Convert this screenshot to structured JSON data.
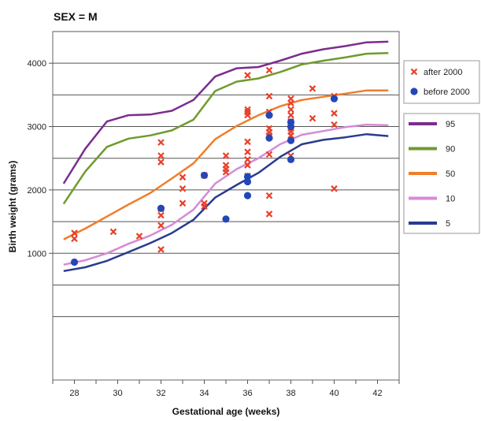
{
  "chart_data": {
    "type": "line",
    "title": "SEX = M",
    "xlabel": "Gestational age (weeks)",
    "ylabel": "Birth weight (grams)",
    "xlim": [
      27,
      43
    ],
    "ylim": [
      -1000,
      4500
    ],
    "x_ticks": [
      28,
      30,
      32,
      34,
      36,
      38,
      40,
      42
    ],
    "y_ticks": [
      1000,
      2000,
      3000,
      4000
    ],
    "y_gridlines": [
      0,
      500,
      1000,
      1500,
      2000,
      2500,
      3000,
      3500,
      4000,
      4500
    ],
    "grid": "horizontal",
    "legend_position": "right",
    "series": [
      {
        "name": "95",
        "color": "#7b2d8e",
        "x": [
          27.5,
          28.5,
          29.5,
          30.5,
          31.5,
          32.5,
          33.5,
          34.5,
          35.5,
          36.5,
          37.5,
          38.5,
          39.5,
          40.5,
          41.5,
          42.5
        ],
        "y": [
          2100,
          2650,
          3080,
          3180,
          3190,
          3250,
          3420,
          3790,
          3920,
          3940,
          4040,
          4150,
          4220,
          4270,
          4330,
          4340
        ]
      },
      {
        "name": "90",
        "color": "#6f9a2e",
        "x": [
          27.5,
          28.5,
          29.5,
          30.5,
          31.5,
          32.5,
          33.5,
          34.5,
          35.5,
          36.5,
          37.5,
          38.5,
          39.5,
          40.5,
          41.5,
          42.5
        ],
        "y": [
          1780,
          2290,
          2680,
          2810,
          2860,
          2940,
          3110,
          3560,
          3710,
          3760,
          3860,
          3980,
          4040,
          4090,
          4150,
          4160
        ]
      },
      {
        "name": "50",
        "color": "#f07e2a",
        "x": [
          27.5,
          28.5,
          29.5,
          30.5,
          31.5,
          32.5,
          33.5,
          34.5,
          35.5,
          36.5,
          37.5,
          38.5,
          39.5,
          40.5,
          41.5,
          42.5
        ],
        "y": [
          1220,
          1390,
          1580,
          1770,
          1950,
          2180,
          2420,
          2800,
          3010,
          3180,
          3320,
          3420,
          3470,
          3520,
          3570,
          3570
        ]
      },
      {
        "name": "10",
        "color": "#d68ad6",
        "x": [
          27.5,
          28.5,
          29.5,
          30.5,
          31.5,
          32.5,
          33.5,
          34.5,
          35.5,
          36.5,
          37.5,
          38.5,
          39.5,
          40.5,
          41.5,
          42.5
        ],
        "y": [
          820,
          890,
          1000,
          1150,
          1280,
          1450,
          1690,
          2100,
          2330,
          2500,
          2720,
          2870,
          2930,
          2990,
          3030,
          3020
        ]
      },
      {
        "name": "5",
        "color": "#2b3a8f",
        "x": [
          27.5,
          28.5,
          29.5,
          30.5,
          31.5,
          32.5,
          33.5,
          34.5,
          35.5,
          36.5,
          37.5,
          38.5,
          39.5,
          40.5,
          41.5,
          42.5
        ],
        "y": [
          720,
          780,
          880,
          1020,
          1160,
          1320,
          1530,
          1880,
          2080,
          2270,
          2520,
          2720,
          2790,
          2830,
          2880,
          2850
        ]
      }
    ],
    "scatter": [
      {
        "name": "after 2000",
        "marker": "x",
        "color": "#e8402a",
        "points": [
          [
            28,
            1320
          ],
          [
            28,
            1230
          ],
          [
            29.8,
            1340
          ],
          [
            31,
            1270
          ],
          [
            32,
            2750
          ],
          [
            32,
            2540
          ],
          [
            32,
            2440
          ],
          [
            32,
            1700
          ],
          [
            32,
            1600
          ],
          [
            32,
            1440
          ],
          [
            32,
            1060
          ],
          [
            33,
            2200
          ],
          [
            33,
            2020
          ],
          [
            33,
            1790
          ],
          [
            34,
            2230
          ],
          [
            34,
            1790
          ],
          [
            34,
            1740
          ],
          [
            35,
            2540
          ],
          [
            35,
            2390
          ],
          [
            35,
            2330
          ],
          [
            35,
            2280
          ],
          [
            36,
            3810
          ],
          [
            36,
            3270
          ],
          [
            36,
            3230
          ],
          [
            36,
            3180
          ],
          [
            36,
            2760
          ],
          [
            36,
            2600
          ],
          [
            36,
            2480
          ],
          [
            36,
            2390
          ],
          [
            36,
            2220
          ],
          [
            37,
            3890
          ],
          [
            37,
            3480
          ],
          [
            37,
            3230
          ],
          [
            37,
            2970
          ],
          [
            37,
            2910
          ],
          [
            37,
            2860
          ],
          [
            37,
            2560
          ],
          [
            37,
            1910
          ],
          [
            37,
            1620
          ],
          [
            38,
            3440
          ],
          [
            38,
            3370
          ],
          [
            38,
            3270
          ],
          [
            38,
            3180
          ],
          [
            38,
            3080
          ],
          [
            38,
            3020
          ],
          [
            38,
            2970
          ],
          [
            38,
            2920
          ],
          [
            38,
            2860
          ],
          [
            38,
            2540
          ],
          [
            39,
            3600
          ],
          [
            39,
            3130
          ],
          [
            40,
            3480
          ],
          [
            40,
            3210
          ],
          [
            40,
            3030
          ],
          [
            40,
            2020
          ]
        ]
      },
      {
        "name": "before 2000",
        "marker": "circle",
        "color": "#2447b8",
        "points": [
          [
            28,
            860
          ],
          [
            32,
            1710
          ],
          [
            34,
            2230
          ],
          [
            35,
            1540
          ],
          [
            36,
            2210
          ],
          [
            36,
            2130
          ],
          [
            36,
            1910
          ],
          [
            37,
            3180
          ],
          [
            37,
            2820
          ],
          [
            38,
            3070
          ],
          [
            38,
            3000
          ],
          [
            38,
            2780
          ],
          [
            38,
            2480
          ],
          [
            40,
            3440
          ]
        ]
      }
    ]
  }
}
